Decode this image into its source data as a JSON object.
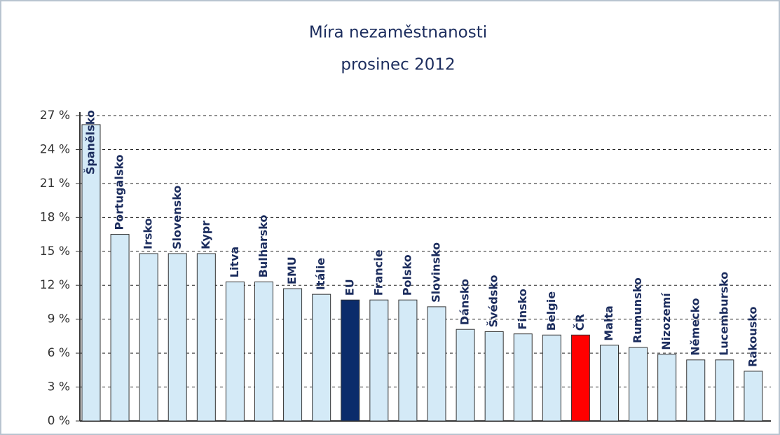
{
  "chart_data": {
    "type": "bar",
    "title": "Míra nezaměstnanosti",
    "subtitle": "prosinec 2012",
    "categories": [
      "Španělsko",
      "Portugalsko",
      "Irsko",
      "Slovensko",
      "Kypr",
      "Litva",
      "Bulharsko",
      "EMU",
      "Itálie",
      "EU",
      "Francie",
      "Polsko",
      "Slovinsko",
      "Dánsko",
      "Švédsko",
      "Finsko",
      "Belgie",
      "ČR",
      "Malta",
      "Rumunsko",
      "Nizozemí",
      "Německo",
      "Lucembursko",
      "Rakousko"
    ],
    "values": [
      26.2,
      16.5,
      14.8,
      14.8,
      14.8,
      12.3,
      12.3,
      11.7,
      11.2,
      10.7,
      10.7,
      10.7,
      10.1,
      8.1,
      7.9,
      7.7,
      7.6,
      7.6,
      6.7,
      6.5,
      5.9,
      5.4,
      5.4,
      4.4
    ],
    "colors": [
      "#d4eaf7",
      "#d4eaf7",
      "#d4eaf7",
      "#d4eaf7",
      "#d4eaf7",
      "#d4eaf7",
      "#d4eaf7",
      "#d4eaf7",
      "#d4eaf7",
      "#0b2c6b",
      "#d4eaf7",
      "#d4eaf7",
      "#d4eaf7",
      "#d4eaf7",
      "#d4eaf7",
      "#d4eaf7",
      "#d4eaf7",
      "#ff0000",
      "#d4eaf7",
      "#d4eaf7",
      "#d4eaf7",
      "#d4eaf7",
      "#d4eaf7",
      "#d4eaf7"
    ],
    "ylim": [
      0,
      27
    ],
    "yticks": [
      {
        "value": 0,
        "label": "0 %"
      },
      {
        "value": 3,
        "label": "3 %"
      },
      {
        "value": 6,
        "label": "6 %"
      },
      {
        "value": 9,
        "label": "9 %"
      },
      {
        "value": 12,
        "label": "12 %"
      },
      {
        "value": 15,
        "label": "15 %"
      },
      {
        "value": 18,
        "label": "18 %"
      },
      {
        "value": 21,
        "label": "21 %"
      },
      {
        "value": 24,
        "label": "24 %"
      },
      {
        "value": 27,
        "label": "27 %"
      }
    ],
    "grid": true
  }
}
